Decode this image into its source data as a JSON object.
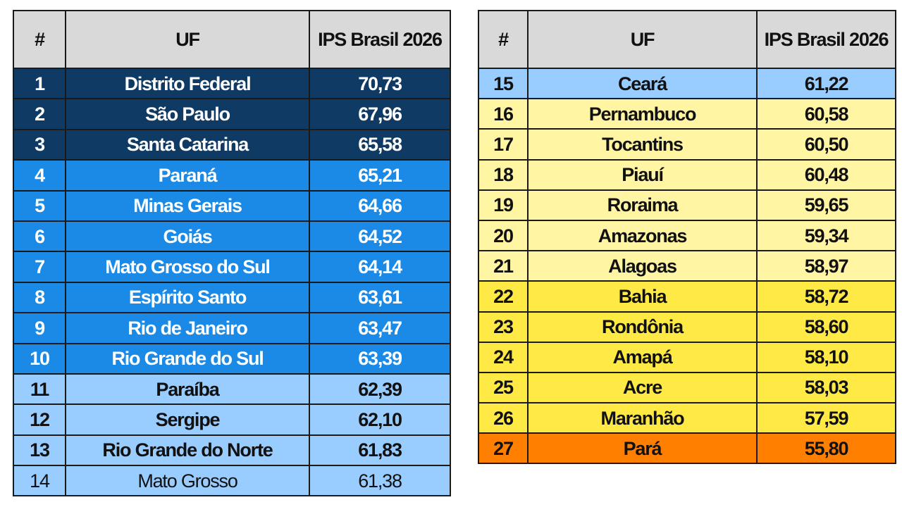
{
  "tables": [
    {
      "header": [
        "#",
        "UF",
        "IPS Brasil 2026"
      ],
      "rows": [
        [
          "1",
          "Distrito Federal",
          "70,73"
        ],
        [
          "2",
          "São Paulo",
          "67,96"
        ],
        [
          "3",
          "Santa Catarina",
          "65,58"
        ],
        [
          "4",
          "Paraná",
          "65,21"
        ],
        [
          "5",
          "Minas Gerais",
          "64,66"
        ],
        [
          "6",
          "Goiás",
          "64,52"
        ],
        [
          "7",
          "Mato Grosso do Sul",
          "64,14"
        ],
        [
          "8",
          "Espírito Santo",
          "63,61"
        ],
        [
          "9",
          "Rio de Janeiro",
          "63,47"
        ],
        [
          "10",
          "Rio Grande do Sul",
          "63,39"
        ],
        [
          "11",
          "Paraíba",
          "62,39"
        ],
        [
          "12",
          "Sergipe",
          "62,10"
        ],
        [
          "13",
          "Rio Grande do Norte",
          "61,83"
        ],
        [
          "14",
          "Mato Grosso",
          "61,38"
        ]
      ]
    },
    {
      "header": [
        "#",
        "UF",
        "IPS Brasil 2026"
      ],
      "rows": [
        [
          "15",
          "Ceará",
          "61,22"
        ],
        [
          "16",
          "Pernambuco",
          "60,58"
        ],
        [
          "17",
          "Tocantins",
          "60,50"
        ],
        [
          "18",
          "Piauí",
          "60,48"
        ],
        [
          "19",
          "Roraima",
          "59,65"
        ],
        [
          "20",
          "Amazonas",
          "59,34"
        ],
        [
          "21",
          "Alagoas",
          "58,97"
        ],
        [
          "22",
          "Bahia",
          "58,72"
        ],
        [
          "23",
          "Rondônia",
          "58,60"
        ],
        [
          "24",
          "Amapá",
          "58,10"
        ],
        [
          "25",
          "Acre",
          "58,03"
        ],
        [
          "26",
          "Maranhão",
          "57,59"
        ],
        [
          "27",
          "Pará",
          "55,80"
        ]
      ]
    }
  ]
}
